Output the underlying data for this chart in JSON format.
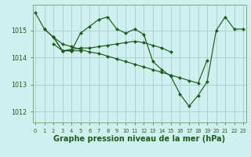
{
  "bg_color": "#cff0ee",
  "grid_color": "#aad4d0",
  "line_color": "#1e5c1e",
  "marker_color": "#1e5c1e",
  "xlabel": "Graphe pression niveau de la mer (hPa)",
  "xlabel_fontsize": 7.0,
  "ylim": [
    1011.6,
    1015.95
  ],
  "xlim": [
    -0.3,
    23.3
  ],
  "yticks": [
    1012,
    1013,
    1014,
    1015
  ],
  "xticks": [
    0,
    1,
    2,
    3,
    4,
    5,
    6,
    7,
    8,
    9,
    10,
    11,
    12,
    13,
    14,
    15,
    16,
    17,
    18,
    19,
    20,
    21,
    22,
    23
  ],
  "series": [
    {
      "x": [
        0,
        1,
        2,
        3,
        4,
        5,
        6,
        7,
        8,
        9,
        10,
        11,
        12,
        13,
        14,
        15,
        16,
        17,
        18,
        19,
        20,
        21,
        22,
        23
      ],
      "y": [
        1015.65,
        1015.05,
        1014.75,
        1014.25,
        1014.25,
        1014.9,
        1015.15,
        1015.4,
        1015.5,
        1015.05,
        1014.9,
        1015.05,
        1014.85,
        1013.85,
        1013.55,
        1013.3,
        1012.65,
        1012.2,
        1012.6,
        1013.1,
        1015.0,
        1015.5,
        1015.05,
        1015.05
      ]
    },
    {
      "x": [
        1,
        2,
        3,
        4,
        5,
        6,
        7,
        8,
        9,
        10,
        11,
        12,
        13,
        14,
        15,
        16,
        17,
        18,
        19
      ],
      "y": [
        1015.05,
        1014.75,
        1014.5,
        1014.4,
        1014.3,
        1014.2,
        1014.15,
        1014.05,
        1013.95,
        1013.85,
        1013.75,
        1013.65,
        1013.55,
        1013.45,
        1013.35,
        1013.25,
        1013.15,
        1013.05,
        1013.9
      ]
    },
    {
      "x": [
        2,
        3,
        4,
        5
      ],
      "y": [
        1014.75,
        1014.25,
        1014.25,
        1014.25
      ]
    },
    {
      "x": [
        2,
        3,
        4,
        5,
        6,
        7,
        8,
        9,
        10,
        11,
        12,
        13,
        14,
        15
      ],
      "y": [
        1014.5,
        1014.25,
        1014.3,
        1014.35,
        1014.35,
        1014.4,
        1014.45,
        1014.5,
        1014.55,
        1014.6,
        1014.55,
        1014.45,
        1014.35,
        1014.2
      ]
    }
  ]
}
